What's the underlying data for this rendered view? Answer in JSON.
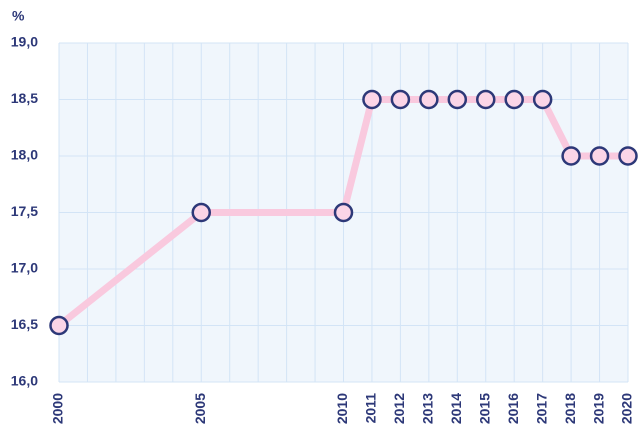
{
  "chart_data": {
    "type": "line",
    "y_unit": "%",
    "x": [
      2000,
      2005,
      2010,
      2011,
      2012,
      2013,
      2014,
      2015,
      2016,
      2017,
      2018,
      2019,
      2020
    ],
    "values": [
      16.5,
      17.5,
      17.5,
      18.5,
      18.5,
      18.5,
      18.5,
      18.5,
      18.5,
      18.5,
      18.0,
      18.0,
      18.0
    ],
    "color": "#f9c9de",
    "marker_color": "#fbd5e7",
    "marker_edge_color": "#2d3878",
    "xlim": [
      2000,
      2020
    ],
    "xticks": [
      2000,
      2005,
      2010,
      2011,
      2012,
      2013,
      2014,
      2015,
      2016,
      2017,
      2018,
      2019,
      2020
    ],
    "xminorticks": [
      2000,
      2001,
      2002,
      2003,
      2004,
      2005,
      2006,
      2007,
      2008,
      2009,
      2010,
      2011,
      2012,
      2013,
      2014,
      2015,
      2016,
      2017,
      2018,
      2019,
      2020
    ],
    "ylim": [
      16.0,
      19.0
    ],
    "yticks": [
      {
        "value": 16.0,
        "label": "16,0"
      },
      {
        "value": 16.5,
        "label": "16,5"
      },
      {
        "value": 17.0,
        "label": "17,0"
      },
      {
        "value": 17.5,
        "label": "17,5"
      },
      {
        "value": 18.0,
        "label": "18,0"
      },
      {
        "value": 18.5,
        "label": "18,5"
      },
      {
        "value": 19.0,
        "label": "19,0"
      }
    ],
    "grid": true
  }
}
